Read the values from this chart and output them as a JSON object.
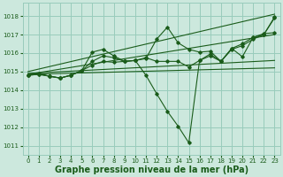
{
  "bg_color": "#cce8dd",
  "grid_color": "#99ccbb",
  "line_color": "#1a5c1a",
  "xlabel": "Graphe pression niveau de la mer (hPa)",
  "xlabel_fontsize": 7.0,
  "ylim": [
    1010.5,
    1018.7
  ],
  "xlim": [
    -0.5,
    23.5
  ],
  "yticks": [
    1011,
    1012,
    1013,
    1014,
    1015,
    1016,
    1017,
    1018
  ],
  "xticks": [
    0,
    1,
    2,
    3,
    4,
    5,
    6,
    7,
    8,
    9,
    10,
    11,
    12,
    13,
    14,
    15,
    16,
    17,
    18,
    19,
    20,
    21,
    22,
    23
  ],
  "straight_line1": [
    1015.0,
    1018.1
  ],
  "straight_line2": [
    1014.85,
    1017.0
  ],
  "straight_line3": [
    1014.9,
    1015.6
  ],
  "straight_line4": [
    1014.85,
    1015.2
  ],
  "jagged1": [
    1014.8,
    1014.9,
    1014.75,
    1014.65,
    1014.8,
    1015.05,
    1016.05,
    1016.2,
    1015.85,
    1015.55,
    1015.6,
    1015.7,
    1016.75,
    1017.4,
    1016.55,
    1016.2,
    1016.05,
    1016.1,
    1015.55,
    1016.25,
    1016.5,
    1016.85,
    1017.05,
    1017.1
  ],
  "jagged2": [
    1014.8,
    1014.85,
    1014.75,
    1014.65,
    1014.8,
    1015.05,
    1015.55,
    1015.85,
    1015.75,
    1015.55,
    1015.6,
    1014.8,
    1013.8,
    1012.85,
    1012.05,
    1011.15,
    1015.6,
    1015.85,
    1015.55,
    1016.25,
    1015.8,
    1016.85,
    1017.0,
    1017.95
  ],
  "jagged3": [
    1014.8,
    1014.85,
    1014.75,
    1014.65,
    1014.8,
    1015.05,
    1015.35,
    1015.55,
    1015.5,
    1015.55,
    1015.6,
    1015.75,
    1015.55,
    1015.55,
    1015.55,
    1015.25,
    1015.6,
    1015.95,
    1015.55,
    1016.2,
    1016.4,
    1016.75,
    1017.0,
    1017.9
  ]
}
